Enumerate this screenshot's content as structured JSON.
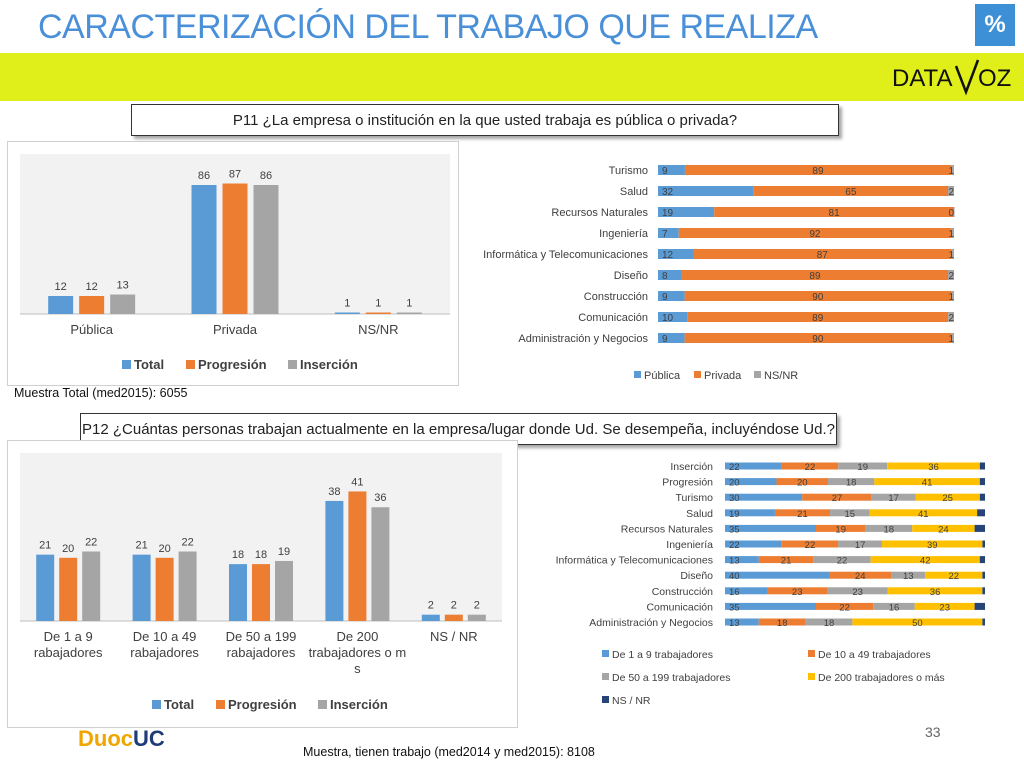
{
  "header": {
    "title": "CARACTERIZACIÓN DEL TRABAJO QUE REALIZA",
    "badge": "%",
    "logo_left": "DATA",
    "logo_right": "OZ"
  },
  "q1": {
    "question": "P11 ¿La empresa o institución en la que usted trabaja es pública o privada?",
    "sample_note": "Muestra Total (med2015): 6055"
  },
  "q2": {
    "question": "P12 ¿Cuántas personas trabajan actualmente en la empresa/lugar donde Ud. Se desempeña, incluyéndose Ud.?",
    "sample_note": "Muestra, tienen trabajo (med2014 y med2015): 8108"
  },
  "footer": {
    "page_number": "33",
    "brand_left": "Duoc",
    "brand_right": "UC"
  },
  "colors": {
    "blue": "#5b9bd5",
    "orange": "#ed7d31",
    "gray": "#a5a5a5",
    "yellow": "#ffc000",
    "darkblue": "#264478",
    "accent": "#4a90d9",
    "band": "#e0ef1a"
  },
  "chart_data": [
    {
      "type": "bar",
      "categories": [
        "Pública",
        "Privada",
        "NS/NR"
      ],
      "series": [
        {
          "name": "Total",
          "values": [
            12,
            86,
            1
          ]
        },
        {
          "name": "Progresión",
          "values": [
            12,
            87,
            1
          ]
        },
        {
          "name": "Inserción",
          "values": [
            13,
            86,
            1
          ]
        }
      ],
      "legend": "bottom",
      "ylim": [
        0,
        100
      ]
    },
    {
      "type": "bar",
      "orientation": "horizontal",
      "stacked": true,
      "categories": [
        "Turismo",
        "Salud",
        "Recursos Naturales",
        "Ingeniería",
        "Informática y Telecomunicaciones",
        "Diseño",
        "Construcción",
        "Comunicación",
        "Administración y Negocios"
      ],
      "series": [
        {
          "name": "Pública",
          "values": [
            9,
            32,
            19,
            7,
            12,
            8,
            9,
            10,
            9
          ]
        },
        {
          "name": "Privada",
          "values": [
            89,
            65,
            81,
            92,
            87,
            89,
            90,
            89,
            90
          ]
        },
        {
          "name": "NS/NR",
          "values": [
            1,
            2,
            0,
            1,
            1,
            2,
            1,
            2,
            1
          ]
        }
      ],
      "legend": "bottom"
    },
    {
      "type": "bar",
      "categories": [
        "De 1 a 9 trabajadores",
        "De 10 a 49 trabajadores",
        "De 50 a 199 trabajadores",
        "De 200 trabajadores o más",
        "NS / NR"
      ],
      "series": [
        {
          "name": "Total",
          "values": [
            21,
            21,
            18,
            38,
            2
          ]
        },
        {
          "name": "Progresión",
          "values": [
            20,
            20,
            18,
            41,
            2
          ]
        },
        {
          "name": "Inserción",
          "values": [
            22,
            22,
            19,
            36,
            2
          ]
        }
      ],
      "legend": "bottom",
      "ylim": [
        0,
        50
      ]
    },
    {
      "type": "bar",
      "orientation": "horizontal",
      "stacked": true,
      "categories": [
        "Inserción",
        "Progresión",
        "Turismo",
        "Salud",
        "Recursos Naturales",
        "Ingeniería",
        "Informática y Telecomunicaciones",
        "Diseño",
        "Construcción",
        "Comunicación",
        "Administración y Negocios"
      ],
      "series": [
        {
          "name": "De 1 a 9 trabajadores",
          "values": [
            22,
            20,
            30,
            19,
            35,
            22,
            13,
            40,
            16,
            35,
            13
          ]
        },
        {
          "name": "De 10 a 49  trabajadores",
          "values": [
            22,
            20,
            27,
            21,
            19,
            22,
            21,
            24,
            23,
            22,
            18
          ]
        },
        {
          "name": "De 50 a 199 trabajadores",
          "values": [
            19,
            18,
            17,
            15,
            18,
            17,
            22,
            13,
            23,
            16,
            18
          ]
        },
        {
          "name": "De 200 trabajadores o más",
          "values": [
            36,
            41,
            25,
            41,
            24,
            39,
            42,
            22,
            36,
            23,
            50
          ]
        },
        {
          "name": "NS / NR",
          "values": [
            2,
            2,
            2,
            3,
            4,
            1,
            2,
            1,
            1,
            4,
            1
          ]
        }
      ],
      "legend": "bottom"
    }
  ]
}
